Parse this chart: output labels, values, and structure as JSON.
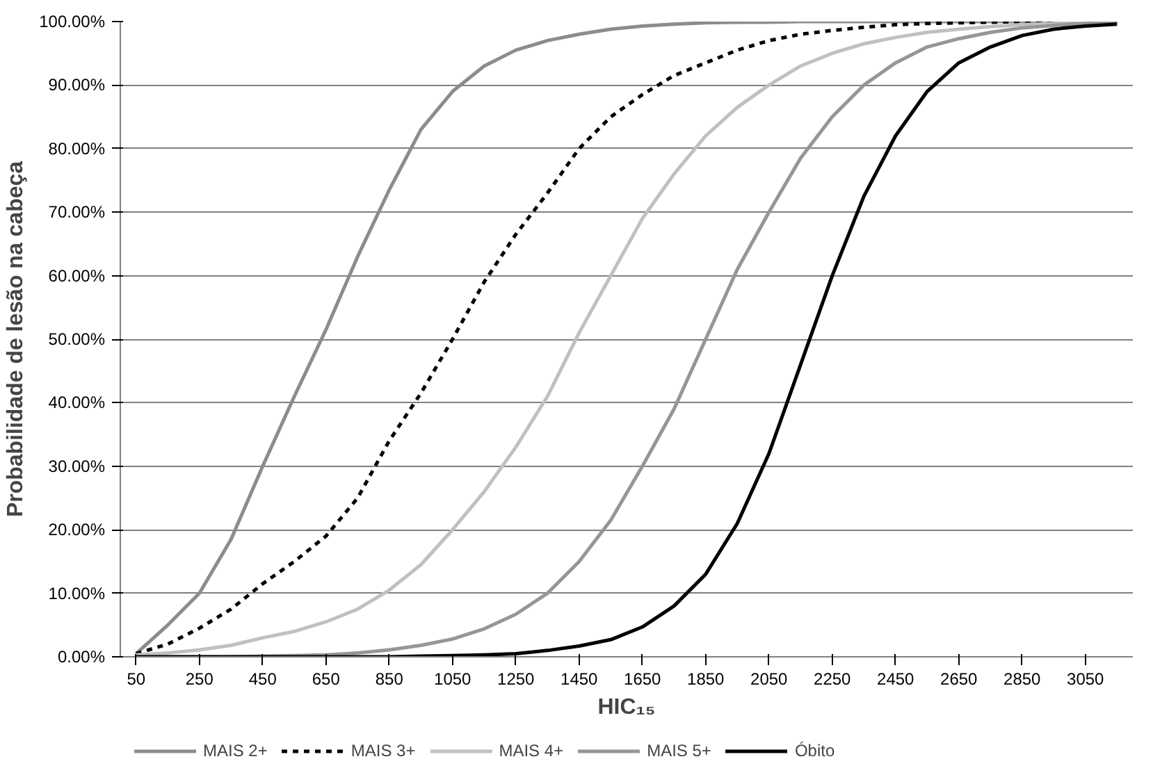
{
  "chart_data": {
    "type": "line",
    "xlabel": "HIC₁₅",
    "ylabel": "Probabilidade de lesão na cabeça",
    "x": [
      50,
      150,
      250,
      350,
      450,
      550,
      650,
      750,
      850,
      950,
      1050,
      1150,
      1250,
      1350,
      1450,
      1550,
      1650,
      1750,
      1850,
      1950,
      2050,
      2150,
      2250,
      2350,
      2450,
      2550,
      2650,
      2750,
      2850,
      2950,
      3050,
      3150
    ],
    "series": [
      {
        "name": "MAIS 2+",
        "color": "#8c8c8c",
        "line_style": "solid",
        "values": [
          0.5,
          5,
          10,
          18.5,
          30,
          41,
          51.5,
          63,
          73.5,
          83,
          89,
          93,
          95.5,
          97,
          98,
          98.8,
          99.3,
          99.6,
          99.8,
          99.9,
          99.9,
          100,
          100,
          100,
          100,
          100,
          100,
          100,
          100,
          100,
          100,
          100
        ]
      },
      {
        "name": "MAIS 3+",
        "color": "#000000",
        "line_style": "dashed",
        "values": [
          0.5,
          2,
          4.5,
          7.5,
          11.5,
          15,
          19,
          25,
          34,
          41.5,
          50,
          59,
          66.5,
          73,
          80,
          85,
          88.5,
          91.5,
          93.5,
          95.5,
          97,
          98,
          98.6,
          99.1,
          99.5,
          99.7,
          99.8,
          99.9,
          100,
          100,
          100,
          100
        ]
      },
      {
        "name": "MAIS 4+",
        "color": "#c0c0c0",
        "line_style": "solid",
        "values": [
          0.3,
          0.6,
          1.1,
          1.8,
          3,
          4,
          5.5,
          7.5,
          10.5,
          14.5,
          20,
          26,
          33,
          41,
          51,
          60,
          69,
          76,
          82,
          86.5,
          90,
          93,
          95,
          96.5,
          97.5,
          98.3,
          98.8,
          99.2,
          99.5,
          99.7,
          99.8,
          99.9
        ]
      },
      {
        "name": "MAIS 5+",
        "color": "#969696",
        "line_style": "solid",
        "values": [
          0,
          0,
          0,
          0,
          0.1,
          0.2,
          0.3,
          0.6,
          1.1,
          1.8,
          2.8,
          4.4,
          6.7,
          10,
          15,
          21.5,
          30,
          39,
          50,
          61,
          70,
          78.5,
          85,
          90,
          93.5,
          96,
          97.3,
          98.3,
          99,
          99.4,
          99.7,
          99.9
        ]
      },
      {
        "name": "Óbito",
        "color": "#000000",
        "line_style": "solid",
        "values": [
          0,
          0,
          0,
          0,
          0,
          0,
          0,
          0,
          0,
          0.1,
          0.2,
          0.3,
          0.5,
          1,
          1.7,
          2.7,
          4.7,
          8,
          13,
          21,
          32,
          46,
          60,
          72.5,
          82,
          89,
          93.5,
          96,
          97.8,
          98.8,
          99.3,
          99.6
        ]
      }
    ],
    "xlim": [
      0,
      3200
    ],
    "xticks": [
      50,
      250,
      450,
      650,
      850,
      1050,
      1250,
      1450,
      1650,
      1850,
      2050,
      2250,
      2450,
      2650,
      2850,
      3050
    ],
    "ylim": [
      0,
      100
    ],
    "yticks": [
      {
        "value": 0,
        "label": "0.00%"
      },
      {
        "value": 10,
        "label": "10.00%"
      },
      {
        "value": 20,
        "label": "20.00%"
      },
      {
        "value": 30,
        "label": "30.00%"
      },
      {
        "value": 40,
        "label": "40.00%"
      },
      {
        "value": 50,
        "label": "50.00%"
      },
      {
        "value": 60,
        "label": "60.00%"
      },
      {
        "value": 70,
        "label": "70.00%"
      },
      {
        "value": 80,
        "label": "80.00%"
      },
      {
        "value": 90,
        "label": "90.00%"
      },
      {
        "value": 100,
        "label": "100.00%"
      }
    ],
    "grid": "y",
    "legend": "bottom"
  }
}
